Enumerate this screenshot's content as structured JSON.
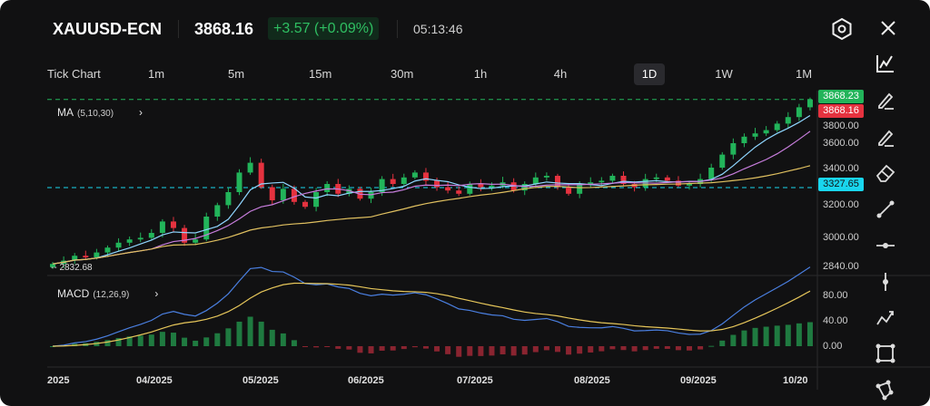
{
  "header": {
    "symbol": "XAUUSD-ECN",
    "price": "3868.16",
    "change": "+3.57 (+0.09%)",
    "time": "05:13:46",
    "settings_icon": "hexagon-settings-icon",
    "close_icon": "close-icon"
  },
  "timeframes": [
    {
      "label": "Tick Chart"
    },
    {
      "label": "1m"
    },
    {
      "label": "5m"
    },
    {
      "label": "15m"
    },
    {
      "label": "30m"
    },
    {
      "label": "1h"
    },
    {
      "label": "4h"
    },
    {
      "label": "1D",
      "active": true
    },
    {
      "label": "1W"
    },
    {
      "label": "1M"
    }
  ],
  "indicators": {
    "ma": {
      "name": "MA",
      "params": "(5,10,30)"
    },
    "macd": {
      "name": "MACD",
      "params": "(12,26,9)"
    }
  },
  "price_axis": [
    "3800.00",
    "3600.00",
    "3400.00",
    "3200.00",
    "3000.00",
    "2840.00"
  ],
  "macd_axis": [
    "80.00",
    "40.00",
    "0.00"
  ],
  "date_axis": [
    "2025",
    "04/2025",
    "05/2025",
    "06/2025",
    "07/2025",
    "08/2025",
    "09/2025",
    "10/20"
  ],
  "tags": {
    "ask": "3868.23",
    "bid": "3868.16",
    "crosshair": "3327.65",
    "low": "-- 2832.68"
  },
  "colors": {
    "up": "#22b45a",
    "down": "#e5323f",
    "ma5": "#8fd6ff",
    "ma10": "#c77ddc",
    "ma30": "#e0c060",
    "macd": "#4a7fe0",
    "signal": "#e6c65a",
    "cross": "#19d6ee"
  },
  "toolbar": [
    "line-chart-icon",
    "pencil-icon",
    "brush-icon",
    "eraser-icon",
    "trend-line-icon",
    "horizontal-line-icon",
    "vertical-line-icon",
    "polyline-icon",
    "rectangle-icon",
    "polygon-icon"
  ],
  "chart_data": {
    "type": "candlestick",
    "price_range": [
      2840,
      3800
    ],
    "closes": [
      2860,
      2880,
      2910,
      2900,
      2930,
      2960,
      2990,
      3010,
      3020,
      3050,
      3120,
      3080,
      2990,
      3010,
      3150,
      3220,
      3300,
      3420,
      3480,
      3330,
      3250,
      3320,
      3240,
      3210,
      3300,
      3350,
      3290,
      3320,
      3260,
      3300,
      3380,
      3350,
      3390,
      3420,
      3370,
      3330,
      3310,
      3290,
      3350,
      3330,
      3340,
      3360,
      3310,
      3350,
      3390,
      3400,
      3330,
      3290,
      3350,
      3360,
      3370,
      3400,
      3350,
      3330,
      3380,
      3390,
      3370,
      3340,
      3350,
      3380,
      3450,
      3530,
      3600,
      3640,
      3660,
      3680,
      3720,
      3760,
      3820,
      3868
    ],
    "ma_periods": [
      5,
      10,
      30
    ],
    "macd_params": [
      12,
      26,
      9
    ],
    "macd_range": [
      -20,
      100
    ]
  }
}
